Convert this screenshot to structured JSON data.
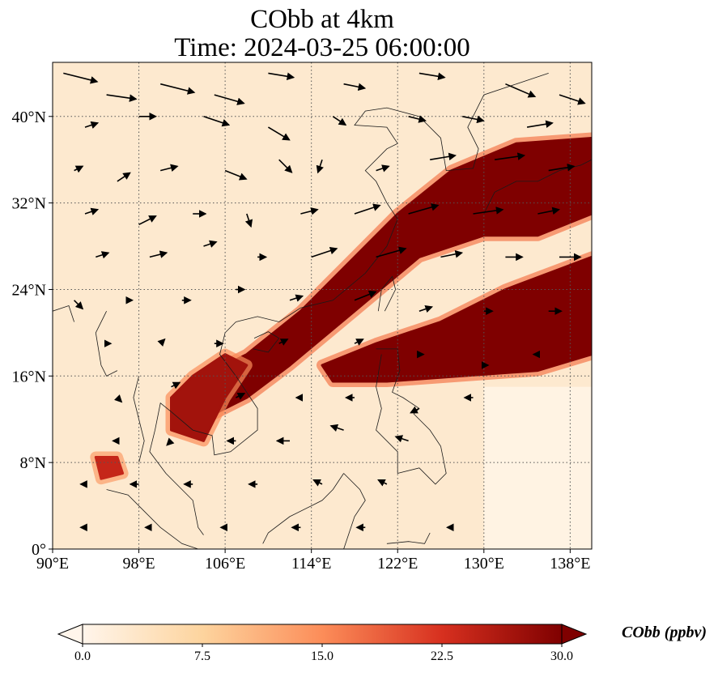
{
  "title": [
    "CObb at 4km",
    "Time: 2024-03-25 06:00:00"
  ],
  "chart_data": {
    "type": "heatmap",
    "title": "CObb at 4km\nTime: 2024-03-25 06:00:00",
    "variable": "CObb",
    "units": "ppbv",
    "x_ticks": [
      "90°E",
      "98°E",
      "106°E",
      "114°E",
      "122°E",
      "130°E",
      "138°E"
    ],
    "x_tick_values": [
      90,
      98,
      106,
      114,
      122,
      130,
      138
    ],
    "y_ticks": [
      "40°N",
      "32°N",
      "24°N",
      "16°N",
      "8°N",
      "0°"
    ],
    "y_tick_values": [
      40,
      32,
      24,
      16,
      8,
      0
    ],
    "xlim": [
      90,
      140
    ],
    "ylim": [
      0,
      45
    ],
    "grid": "dotted",
    "colormap": [
      "#fff5eb",
      "#fdd49e",
      "#fc8d59",
      "#d7301f",
      "#7f0000"
    ],
    "colorbar": {
      "ticks": [
        "0.0",
        "7.5",
        "15.0",
        "22.5",
        "30.0"
      ],
      "tick_values": [
        0,
        7.5,
        15,
        22.5,
        30
      ],
      "range": [
        0,
        30
      ],
      "extend": "both",
      "label": "CObb (ppbv)"
    },
    "plume_regions": [
      {
        "desc": "main band",
        "path_lonlat": [
          [
            104,
            16
          ],
          [
            108,
            18
          ],
          [
            113,
            22
          ],
          [
            118,
            27
          ],
          [
            122,
            31
          ],
          [
            127,
            35
          ],
          [
            133,
            37.5
          ],
          [
            140,
            38
          ],
          [
            140,
            31
          ],
          [
            135,
            29
          ],
          [
            130,
            29
          ],
          [
            124,
            27
          ],
          [
            118,
            22
          ],
          [
            112,
            17
          ],
          [
            108,
            14
          ],
          [
            104,
            12
          ]
        ],
        "value": 30
      },
      {
        "desc": "southern band",
        "path_lonlat": [
          [
            115,
            17
          ],
          [
            120,
            19
          ],
          [
            126,
            21
          ],
          [
            132,
            24
          ],
          [
            140,
            27
          ],
          [
            140,
            18
          ],
          [
            135,
            16.5
          ],
          [
            128,
            16
          ],
          [
            121,
            15.5
          ],
          [
            116,
            15.5
          ]
        ],
        "value": 30
      },
      {
        "desc": "indochina",
        "path_lonlat": [
          [
            101,
            11
          ],
          [
            104,
            10
          ],
          [
            106,
            14
          ],
          [
            108,
            17
          ],
          [
            106,
            18
          ],
          [
            103,
            16
          ],
          [
            101,
            14
          ]
        ],
        "value": 27
      },
      {
        "desc": "bay of bengal patch",
        "path_lonlat": [
          [
            94,
            8.5
          ],
          [
            96,
            8.5
          ],
          [
            96.5,
            7
          ],
          [
            94.5,
            6.5
          ]
        ],
        "value": 24
      }
    ],
    "wind_vectors": [
      {
        "lon": 91,
        "lat": 44,
        "u": 8,
        "v": -2
      },
      {
        "lon": 95,
        "lat": 42,
        "u": 7,
        "v": -1
      },
      {
        "lon": 100,
        "lat": 43,
        "u": 8,
        "v": -2
      },
      {
        "lon": 105,
        "lat": 42,
        "u": 7,
        "v": -2
      },
      {
        "lon": 110,
        "lat": 44,
        "u": 6,
        "v": -1
      },
      {
        "lon": 117,
        "lat": 43,
        "u": 5,
        "v": -1
      },
      {
        "lon": 124,
        "lat": 44,
        "u": 6,
        "v": -1
      },
      {
        "lon": 132,
        "lat": 43,
        "u": 7,
        "v": -3
      },
      {
        "lon": 137,
        "lat": 42,
        "u": 6,
        "v": -2
      },
      {
        "lon": 93,
        "lat": 39,
        "u": 3,
        "v": 1
      },
      {
        "lon": 98,
        "lat": 40,
        "u": 4,
        "v": 0
      },
      {
        "lon": 104,
        "lat": 40,
        "u": 6,
        "v": -2
      },
      {
        "lon": 110,
        "lat": 39,
        "u": 5,
        "v": -3
      },
      {
        "lon": 116,
        "lat": 40,
        "u": 3,
        "v": -2
      },
      {
        "lon": 123,
        "lat": 40,
        "u": 4,
        "v": -1
      },
      {
        "lon": 128,
        "lat": 40,
        "u": 5,
        "v": -1
      },
      {
        "lon": 134,
        "lat": 39,
        "u": 6,
        "v": 1
      },
      {
        "lon": 92,
        "lat": 35,
        "u": 2,
        "v": 1
      },
      {
        "lon": 96,
        "lat": 34,
        "u": 3,
        "v": 2
      },
      {
        "lon": 100,
        "lat": 35,
        "u": 4,
        "v": 1
      },
      {
        "lon": 106,
        "lat": 35,
        "u": 5,
        "v": -2
      },
      {
        "lon": 111,
        "lat": 36,
        "u": 3,
        "v": -3
      },
      {
        "lon": 115,
        "lat": 36,
        "u": -1,
        "v": -3
      },
      {
        "lon": 120,
        "lat": 35,
        "u": 3,
        "v": 1
      },
      {
        "lon": 125,
        "lat": 36,
        "u": 6,
        "v": 1
      },
      {
        "lon": 131,
        "lat": 36,
        "u": 7,
        "v": 1
      },
      {
        "lon": 136,
        "lat": 35,
        "u": 6,
        "v": 1
      },
      {
        "lon": 93,
        "lat": 31,
        "u": 3,
        "v": 1
      },
      {
        "lon": 98,
        "lat": 30,
        "u": 4,
        "v": 2
      },
      {
        "lon": 103,
        "lat": 31,
        "u": 3,
        "v": 0
      },
      {
        "lon": 108,
        "lat": 31,
        "u": 1,
        "v": -3
      },
      {
        "lon": 113,
        "lat": 31,
        "u": 4,
        "v": 1
      },
      {
        "lon": 118,
        "lat": 31,
        "u": 6,
        "v": 2
      },
      {
        "lon": 123,
        "lat": 31,
        "u": 7,
        "v": 2
      },
      {
        "lon": 129,
        "lat": 31,
        "u": 7,
        "v": 1
      },
      {
        "lon": 135,
        "lat": 31,
        "u": 5,
        "v": 1
      },
      {
        "lon": 94,
        "lat": 27,
        "u": 3,
        "v": 1
      },
      {
        "lon": 99,
        "lat": 27,
        "u": 4,
        "v": 1
      },
      {
        "lon": 104,
        "lat": 28,
        "u": 3,
        "v": 1
      },
      {
        "lon": 109,
        "lat": 27,
        "u": 2,
        "v": 0
      },
      {
        "lon": 114,
        "lat": 27,
        "u": 6,
        "v": 2
      },
      {
        "lon": 120,
        "lat": 27,
        "u": 7,
        "v": 2
      },
      {
        "lon": 126,
        "lat": 27,
        "u": 5,
        "v": 1
      },
      {
        "lon": 132,
        "lat": 27,
        "u": 4,
        "v": 0
      },
      {
        "lon": 137,
        "lat": 27,
        "u": 5,
        "v": 0
      },
      {
        "lon": 92,
        "lat": 23,
        "u": 2,
        "v": -2
      },
      {
        "lon": 97,
        "lat": 23,
        "u": 1,
        "v": 0
      },
      {
        "lon": 102,
        "lat": 23,
        "u": 2,
        "v": 0
      },
      {
        "lon": 107,
        "lat": 24,
        "u": 2,
        "v": 0
      },
      {
        "lon": 112,
        "lat": 23,
        "u": 3,
        "v": 1
      },
      {
        "lon": 118,
        "lat": 23,
        "u": 5,
        "v": 2
      },
      {
        "lon": 124,
        "lat": 22,
        "u": 3,
        "v": 1
      },
      {
        "lon": 130,
        "lat": 22,
        "u": 2,
        "v": 0
      },
      {
        "lon": 136,
        "lat": 22,
        "u": 3,
        "v": 0
      },
      {
        "lon": 95,
        "lat": 19,
        "u": 1,
        "v": 0
      },
      {
        "lon": 100,
        "lat": 19,
        "u": 1,
        "v": 1
      },
      {
        "lon": 105,
        "lat": 19,
        "u": 2,
        "v": 0
      },
      {
        "lon": 111,
        "lat": 19,
        "u": 2,
        "v": 1
      },
      {
        "lon": 118,
        "lat": 19,
        "u": 2,
        "v": 1
      },
      {
        "lon": 124,
        "lat": 18,
        "u": 1,
        "v": 0
      },
      {
        "lon": 130,
        "lat": 17,
        "u": 1,
        "v": 0
      },
      {
        "lon": 135,
        "lat": 18,
        "u": -1,
        "v": 0
      },
      {
        "lon": 96,
        "lat": 14,
        "u": 1,
        "v": -1
      },
      {
        "lon": 101,
        "lat": 15,
        "u": 2,
        "v": 1
      },
      {
        "lon": 107,
        "lat": 14,
        "u": 2,
        "v": 1
      },
      {
        "lon": 113,
        "lat": 14,
        "u": -1,
        "v": 0
      },
      {
        "lon": 118,
        "lat": 14,
        "u": -2,
        "v": 0
      },
      {
        "lon": 124,
        "lat": 13,
        "u": -2,
        "v": -1
      },
      {
        "lon": 129,
        "lat": 14,
        "u": -2,
        "v": 0
      },
      {
        "lon": 96,
        "lat": 10,
        "u": -1,
        "v": 0
      },
      {
        "lon": 101,
        "lat": 10,
        "u": -1,
        "v": -1
      },
      {
        "lon": 107,
        "lat": 10,
        "u": -2,
        "v": 0
      },
      {
        "lon": 112,
        "lat": 10,
        "u": -3,
        "v": 0
      },
      {
        "lon": 117,
        "lat": 11,
        "u": -3,
        "v": 1
      },
      {
        "lon": 123,
        "lat": 10,
        "u": -3,
        "v": 1
      },
      {
        "lon": 93,
        "lat": 6,
        "u": -1,
        "v": 0
      },
      {
        "lon": 98,
        "lat": 6,
        "u": -2,
        "v": 0
      },
      {
        "lon": 103,
        "lat": 6,
        "u": -2,
        "v": 0
      },
      {
        "lon": 109,
        "lat": 6,
        "u": -2,
        "v": 0
      },
      {
        "lon": 115,
        "lat": 6,
        "u": -2,
        "v": 1
      },
      {
        "lon": 121,
        "lat": 6,
        "u": -2,
        "v": 1
      },
      {
        "lon": 93,
        "lat": 2,
        "u": -1,
        "v": 0
      },
      {
        "lon": 99,
        "lat": 2,
        "u": -1,
        "v": 0
      },
      {
        "lon": 106,
        "lat": 2,
        "u": -1,
        "v": 0
      },
      {
        "lon": 113,
        "lat": 2,
        "u": -2,
        "v": 0
      },
      {
        "lon": 119,
        "lat": 2,
        "u": -2,
        "v": 0
      },
      {
        "lon": 127,
        "lat": 2,
        "u": -1,
        "v": 0
      }
    ]
  }
}
